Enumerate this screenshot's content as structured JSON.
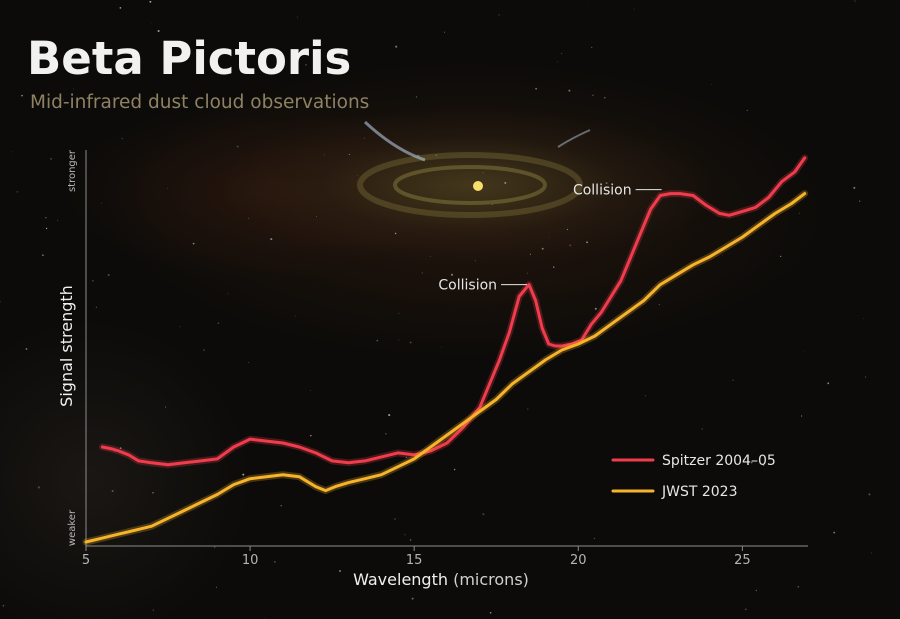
{
  "title": "Beta Pictoris",
  "subtitle": "Mid-infrared dust cloud observations",
  "colors": {
    "spitzer": "#f03c4c",
    "jwst": "#f7b32a",
    "text": "#e6e6e6",
    "axis": "#8c8c8c"
  },
  "chart_data": {
    "type": "line",
    "xlabel": "Wavelength",
    "xlabel_unit": "(microns)",
    "ylabel": "Signal strength",
    "y_tick_top": "stronger",
    "y_tick_bottom": "weaker",
    "xlim": [
      5,
      27
    ],
    "ylim": [
      0,
      100
    ],
    "x_ticks": [
      5,
      10,
      15,
      20,
      25
    ],
    "grid": false,
    "legend_position": "bottom-right",
    "annotations": [
      {
        "text": "Collision",
        "x": 18.5,
        "y": 66
      },
      {
        "text": "Collision",
        "x": 22.6,
        "y": 90
      }
    ],
    "series": [
      {
        "name": "Spitzer 2004–05",
        "color": "#f03c4c",
        "x": [
          5.5,
          5.8,
          6.0,
          6.3,
          6.6,
          7.0,
          7.5,
          8.0,
          8.5,
          9.0,
          9.5,
          10.0,
          10.5,
          11.0,
          11.5,
          12.0,
          12.5,
          13.0,
          13.5,
          14.0,
          14.5,
          15.0,
          15.5,
          16.0,
          16.5,
          17.0,
          17.3,
          17.6,
          17.9,
          18.2,
          18.5,
          18.7,
          18.9,
          19.1,
          19.3,
          19.5,
          19.8,
          20.1,
          20.4,
          20.7,
          21.0,
          21.3,
          21.6,
          21.9,
          22.2,
          22.5,
          22.8,
          23.1,
          23.5,
          23.9,
          24.3,
          24.6,
          25.0,
          25.4,
          25.8,
          26.2,
          26.6,
          26.9
        ],
        "y": [
          25,
          24.5,
          24,
          23,
          21.5,
          21,
          20.5,
          21,
          21.5,
          22,
          25,
          27,
          26.5,
          26,
          25,
          23.5,
          21.5,
          21,
          21.5,
          22.5,
          23.5,
          23,
          24,
          26,
          30,
          35,
          41,
          47,
          54,
          63,
          66,
          62,
          55,
          51,
          50.5,
          50.5,
          51,
          52,
          56,
          59,
          63,
          67,
          73,
          79,
          85,
          88.5,
          89,
          89,
          88.5,
          86,
          84,
          83.5,
          84.5,
          85.5,
          88,
          92,
          94.5,
          98
        ]
      },
      {
        "name": "JWST 2023",
        "color": "#f7b32a",
        "x": [
          5.0,
          5.5,
          6.0,
          6.5,
          7.0,
          7.5,
          8.0,
          8.5,
          9.0,
          9.5,
          10.0,
          10.5,
          11.0,
          11.5,
          12.0,
          12.3,
          12.6,
          13.0,
          13.5,
          14.0,
          14.5,
          15.0,
          15.5,
          16.0,
          16.5,
          17.0,
          17.5,
          18.0,
          18.5,
          19.0,
          19.5,
          20.0,
          20.5,
          21.0,
          21.5,
          22.0,
          22.5,
          23.0,
          23.5,
          24.0,
          24.5,
          25.0,
          25.5,
          26.0,
          26.5,
          26.9
        ],
        "y": [
          1,
          2,
          3,
          4,
          5,
          7,
          9,
          11,
          13,
          15.5,
          17,
          17.5,
          18,
          17.5,
          15,
          14,
          15,
          16,
          17,
          18,
          20,
          22,
          25,
          28,
          31,
          34,
          37,
          41,
          44,
          47,
          49.5,
          51,
          53,
          56,
          59,
          62,
          66,
          68.5,
          71,
          73,
          75.5,
          78,
          81,
          84,
          86.5,
          89
        ]
      }
    ]
  }
}
